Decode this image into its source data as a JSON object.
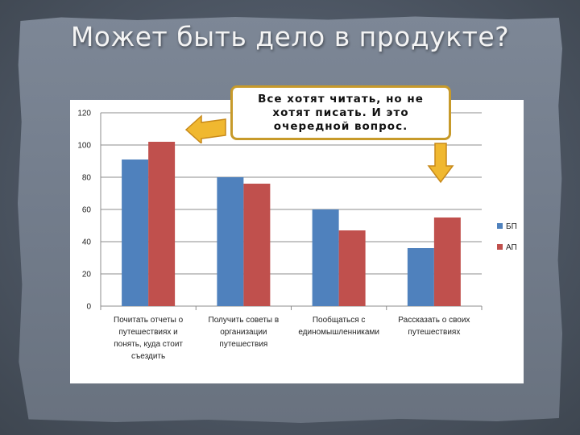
{
  "slide": {
    "title": "Может быть дело в продукте?",
    "callout_text": "Все хотят читать, но не хотят писать. И это очередной вопрос."
  },
  "colors": {
    "series_bp": "#4f81bd",
    "series_ap": "#c0504d",
    "arrow_fill": "#f0b830",
    "arrow_stroke": "#c7891a"
  },
  "icons": {
    "left_arrow": "arrow-left-icon",
    "down_arrow": "arrow-down-icon"
  },
  "chart_data": {
    "type": "bar",
    "categories": [
      [
        "Почитать отчеты о",
        "путешествиях и",
        "понять, куда стоит",
        "съездить"
      ],
      [
        "Получить советы в",
        "организации",
        "путешествия"
      ],
      [
        "Пообщаться с",
        "единомышленниками"
      ],
      [
        "Рассказать о своих",
        "путешествиях"
      ]
    ],
    "series": [
      {
        "name": "БП",
        "values": [
          91,
          80,
          60,
          36
        ]
      },
      {
        "name": "АП",
        "values": [
          102,
          76,
          47,
          55
        ]
      }
    ],
    "ylim": [
      0,
      120
    ],
    "yticks": [
      0,
      20,
      40,
      60,
      80,
      100,
      120
    ],
    "grid": true,
    "legend": "right"
  }
}
